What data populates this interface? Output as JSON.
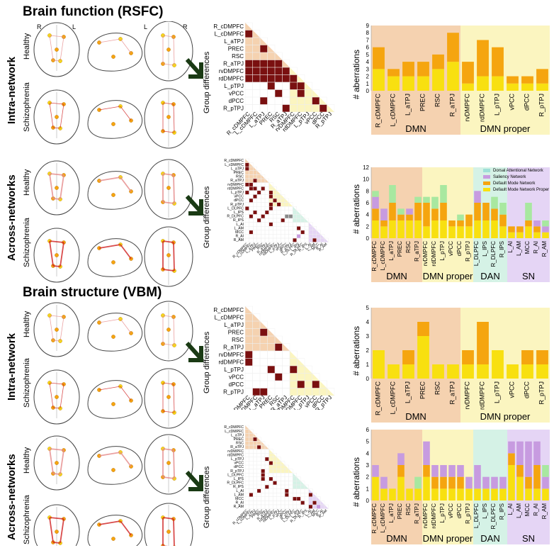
{
  "titles": {
    "function": "Brain function (RSFC)",
    "structure": "Brain structure (VBM)"
  },
  "rows": [
    {
      "label": "Intra-network",
      "groups": [
        "Healthy",
        "Schizophrenia"
      ],
      "ylabel": "Group differences",
      "barlabel": "# aberrations"
    },
    {
      "label": "Across-networks",
      "groups": [
        "Healthy",
        "Schizophrenia"
      ],
      "ylabel": "Group differences",
      "barlabel": "# aberrations"
    },
    {
      "label": "Intra-network",
      "groups": [
        "Healthy",
        "Schizophrenia"
      ],
      "ylabel": "Group differences",
      "barlabel": "# aberrations"
    },
    {
      "label": "Across-networks",
      "groups": [
        "Healthy",
        "Schizophrenia"
      ],
      "ylabel": "Group differences",
      "barlabel": "# aberrations"
    }
  ],
  "brain_orientation": {
    "left_R": "R",
    "left_L": "L",
    "right_L": "L",
    "right_R": "R"
  },
  "colors": {
    "dmn_bg": "#f5d2b0",
    "dmn_proper_bg": "#fbf5c0",
    "dan_bg": "#d5f2e6",
    "sn_bg": "#e5d5f5",
    "dark_red": "#7a1010",
    "orange": "#f5a50f",
    "yellow": "#f8e010",
    "purple": "#c79be0",
    "green": "#a8e8a0",
    "teal": "#9ee0d8"
  },
  "intra_labels": [
    "R_cDMPFC",
    "L_cDMPFC",
    "L_aTPJ",
    "PREC",
    "RSC",
    "R_aTPJ",
    "rvDMPFC",
    "rdDMPFC",
    "L_pTPJ",
    "vPCC",
    "dPCC",
    "R_pTPJ"
  ],
  "across_labels": [
    "R_cDMPFC",
    "L_cDMPFC",
    "L_aTPJ",
    "PREC",
    "RSC",
    "R_aTPJ",
    "rvDMPFC",
    "rdDMPFC",
    "L_pTPJ",
    "vPCC",
    "dPCC",
    "R_pTPJ",
    "L_DLPFC",
    "L_IPS",
    "R_DLPFC",
    "R_IPS",
    "L_AI",
    "L_AM",
    "MCC",
    "R_AI",
    "R_AM"
  ],
  "legend": [
    "Dorsal Attentional Network",
    "Saliency Network",
    "Default Mode Network",
    "Default Mode Network Proper"
  ],
  "chart_data": [
    {
      "type": "bar",
      "title": "",
      "ylabel": "# aberrations",
      "ylim": [
        0,
        9
      ],
      "categories": [
        "R_cDMPFC",
        "L_cDMPFC",
        "L_aTPJ",
        "PREC",
        "RSC",
        "R_aTPJ",
        "rvDMPFC",
        "rdDMPFC",
        "L_pTPJ",
        "vPCC",
        "dPCC",
        "R_pTPJ"
      ],
      "series": [
        {
          "name": "DMN proper",
          "values": [
            3,
            2,
            2,
            2,
            3,
            4,
            1,
            2,
            2,
            1,
            1,
            1
          ]
        },
        {
          "name": "DMN",
          "values": [
            3,
            1,
            2,
            2,
            2,
            4,
            3,
            5,
            4,
            1,
            1,
            2
          ]
        }
      ],
      "groups": [
        {
          "name": "DMN",
          "span": 6
        },
        {
          "name": "DMN proper",
          "span": 6
        }
      ]
    },
    {
      "type": "bar",
      "title": "",
      "ylabel": "# aberrations",
      "ylim": [
        0,
        12
      ],
      "categories": [
        "R_cDMPFC",
        "L_cDMPFC",
        "L_aTPJ",
        "PREC",
        "RSC",
        "R_aTPJ",
        "rvDMPFC",
        "rdDMPFC",
        "L_pTPJ",
        "vPCC",
        "dPCC",
        "R_pTPJ",
        "L_DLPFC",
        "L_IPS",
        "R_DLPFC",
        "R_IPS",
        "L_AI",
        "L_AM",
        "MCC",
        "R_AI",
        "R_AM"
      ],
      "series": [
        {
          "name": "Default Mode Network Proper",
          "values": [
            3,
            2,
            3,
            3,
            3,
            3,
            2,
            3,
            3,
            2,
            2,
            2,
            3,
            3,
            3,
            2,
            1,
            1,
            2,
            1,
            1
          ]
        },
        {
          "name": "Default Mode Network",
          "values": [
            2,
            1,
            3,
            1,
            1,
            3,
            4,
            2,
            3,
            1,
            1,
            2,
            3,
            3,
            2,
            2,
            1,
            1,
            1,
            1,
            0
          ]
        },
        {
          "name": "Saliency Network",
          "values": [
            2,
            2,
            0,
            0,
            1,
            0,
            0,
            0,
            0,
            0,
            0,
            0,
            2,
            0,
            0,
            0,
            0,
            0,
            0,
            1,
            1
          ]
        },
        {
          "name": "Dorsal Attentional Network",
          "values": [
            1,
            0,
            3,
            1,
            0,
            1,
            1,
            2,
            3,
            0,
            1,
            0,
            0,
            0,
            2,
            2,
            0,
            0,
            3,
            0,
            1
          ]
        }
      ],
      "groups": [
        {
          "name": "DMN",
          "span": 6
        },
        {
          "name": "DMN proper",
          "span": 6
        },
        {
          "name": "DAN",
          "span": 4
        },
        {
          "name": "SN",
          "span": 5
        }
      ]
    },
    {
      "type": "bar",
      "title": "",
      "ylabel": "# aberrations",
      "ylim": [
        0,
        5
      ],
      "categories": [
        "R_cDMPFC",
        "L_cDMPFC",
        "L_aTPJ",
        "PREC",
        "RSC",
        "R_aTPJ",
        "rvDMPFC",
        "rdDMPFC",
        "L_pTPJ",
        "vPCC",
        "dPCC",
        "R_pTPJ"
      ],
      "series": [
        {
          "name": "DMN proper",
          "values": [
            2,
            1,
            1,
            3,
            1,
            1,
            1,
            1,
            2,
            1,
            1,
            1
          ]
        },
        {
          "name": "DMN",
          "values": [
            0,
            0,
            1,
            1,
            0,
            0,
            1,
            3,
            0,
            0,
            1,
            1
          ]
        }
      ],
      "groups": [
        {
          "name": "DMN",
          "span": 6
        },
        {
          "name": "DMN proper",
          "span": 6
        }
      ]
    },
    {
      "type": "bar",
      "title": "",
      "ylabel": "# aberrations",
      "ylim": [
        0,
        6
      ],
      "categories": [
        "R_cDMPFC",
        "L_cDMPFC",
        "L_aTPJ",
        "PREC",
        "RSC",
        "R_aTPJ",
        "rvDMPFC",
        "rdDMPFC",
        "L_pTPJ",
        "vPCC",
        "dPCC",
        "R_pTPJ",
        "L_DLPFC",
        "L_IPS",
        "R_DLPFC",
        "R_IPS",
        "L_AI",
        "L_AM",
        "MCC",
        "R_AI",
        "R_AM"
      ],
      "series": [
        {
          "name": "Default Mode Network Proper",
          "values": [
            2,
            1,
            1,
            2,
            1,
            1,
            2,
            1,
            1,
            1,
            1,
            1,
            1,
            1,
            1,
            1,
            3,
            2,
            1,
            1,
            1
          ]
        },
        {
          "name": "Default Mode Network",
          "values": [
            0,
            0,
            0,
            1,
            0,
            0,
            1,
            1,
            1,
            1,
            1,
            0,
            0,
            0,
            0,
            0,
            1,
            1,
            1,
            2,
            0
          ]
        },
        {
          "name": "Saliency Network",
          "values": [
            1,
            1,
            0,
            1,
            0,
            0,
            2,
            1,
            1,
            1,
            1,
            1,
            2,
            1,
            1,
            1,
            1,
            2,
            3,
            2,
            1
          ]
        },
        {
          "name": "Dorsal Attentional Network",
          "values": [
            0,
            0,
            0,
            0,
            0,
            1,
            0,
            0,
            0,
            0,
            0,
            0,
            0,
            0,
            0,
            0,
            0,
            0,
            0,
            0,
            1
          ]
        }
      ],
      "groups": [
        {
          "name": "DMN",
          "span": 6
        },
        {
          "name": "DMN proper",
          "span": 6
        },
        {
          "name": "DAN",
          "span": 4
        },
        {
          "name": "SN",
          "span": 5
        }
      ]
    }
  ]
}
